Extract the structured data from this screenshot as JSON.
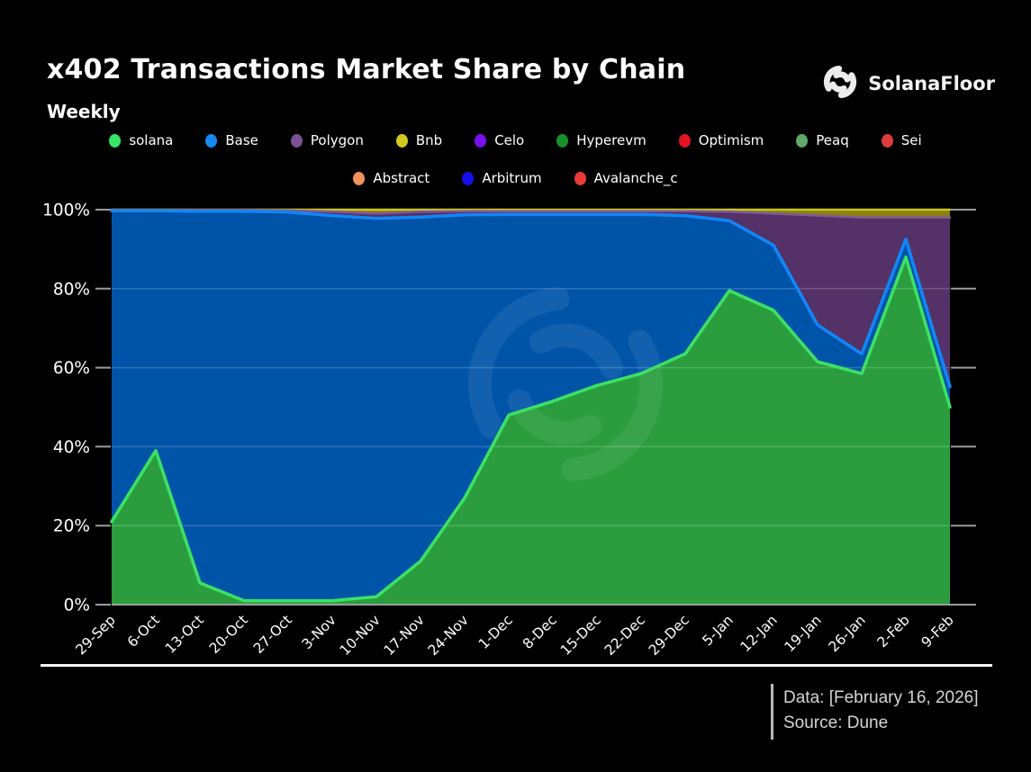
{
  "header": {
    "title": "x402 Transactions Market Share by Chain",
    "subtitle": "Weekly",
    "brand": "SolanaFloor"
  },
  "legend": {
    "row1": [
      {
        "label": "solana",
        "color": "#33e666"
      },
      {
        "label": "Base",
        "color": "#1789f5"
      },
      {
        "label": "Polygon",
        "color": "#7c4f96"
      },
      {
        "label": "Bnb",
        "color": "#d3c81d"
      },
      {
        "label": "Celo",
        "color": "#7a0ff0"
      },
      {
        "label": "Hyperevm",
        "color": "#17902e"
      },
      {
        "label": "Optimism",
        "color": "#e51323"
      },
      {
        "label": "Peaq",
        "color": "#61a96b"
      },
      {
        "label": "Sei",
        "color": "#dd3c3c"
      }
    ],
    "row2": [
      {
        "label": "Abstract",
        "color": "#f2925c"
      },
      {
        "label": "Arbitrum",
        "color": "#1111ee"
      },
      {
        "label": "Avalanche_c",
        "color": "#ea3b36"
      }
    ]
  },
  "chart_data": {
    "type": "area",
    "stacked": true,
    "normalized_percent": true,
    "title": "x402 Transactions Market Share by Chain",
    "subtitle": "Weekly",
    "xlabel": "",
    "ylabel": "",
    "ylim": [
      0,
      100
    ],
    "grid": true,
    "legend_position": "top",
    "y_ticks": [
      "0%",
      "20%",
      "40%",
      "60%",
      "80%",
      "100%"
    ],
    "x": [
      "29-Sep",
      "6-Oct",
      "13-Oct",
      "20-Oct",
      "27-Oct",
      "3-Nov",
      "10-Nov",
      "17-Nov",
      "24-Nov",
      "1-Dec",
      "8-Dec",
      "15-Dec",
      "22-Dec",
      "29-Dec",
      "5-Jan",
      "12-Jan",
      "19-Jan",
      "26-Jan",
      "2-Feb",
      "9-Feb"
    ],
    "series": [
      {
        "name": "solana",
        "fill": "#2b9d3f",
        "stroke": "#3be263",
        "values": [
          21,
          39,
          5.5,
          1,
          1,
          1,
          2,
          11,
          27,
          48,
          51.5,
          55.5,
          58.5,
          63.5,
          79.5,
          74.5,
          61.5,
          58.5,
          88,
          50
        ]
      },
      {
        "name": "Base",
        "fill": "#0054a8",
        "stroke": "#1286f7",
        "values": [
          78.7,
          60.7,
          94.1,
          98.6,
          98.4,
          97.5,
          95.8,
          87.1,
          71.7,
          50.8,
          47.3,
          43.3,
          40.3,
          35,
          17.7,
          16.5,
          9.3,
          5,
          4.5,
          5.2
        ]
      },
      {
        "name": "Polygon",
        "fill": "#543166",
        "stroke": "#7e589a",
        "values": [
          0.2,
          0.2,
          0.3,
          0.3,
          0.4,
          1,
          1.2,
          1.4,
          0.9,
          0.8,
          0.8,
          0.8,
          0.8,
          1.1,
          2.3,
          8,
          27.7,
          34.5,
          5.5,
          42.8
        ]
      },
      {
        "name": "Bnb",
        "fill": "#8c8110",
        "stroke": "#c9c31d",
        "values": [
          0.1,
          0.1,
          0.1,
          0.1,
          0.2,
          0.5,
          1,
          0.5,
          0.4,
          0.4,
          0.4,
          0.4,
          0.4,
          0.4,
          0.5,
          1,
          1.5,
          2,
          2,
          2
        ]
      }
    ],
    "minor_series_in_legend_only": [
      "Celo",
      "Hyperevm",
      "Optimism",
      "Peaq",
      "Sei",
      "Abstract",
      "Arbitrum",
      "Avalanche_c"
    ]
  },
  "footer": {
    "data_label": "Data: [February 16, 2026]",
    "source_label": "Source: Dune"
  }
}
